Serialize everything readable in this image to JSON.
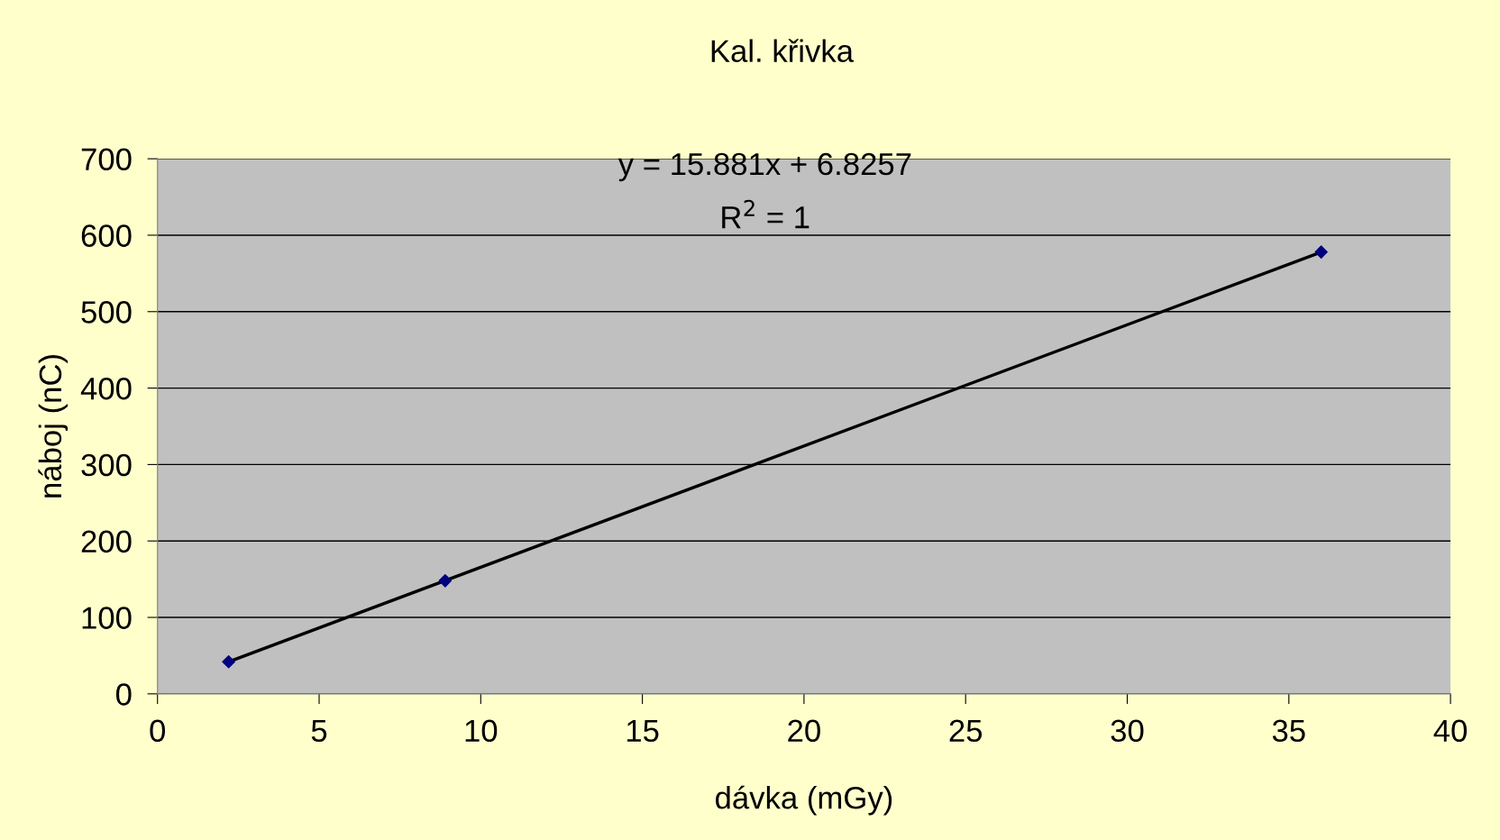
{
  "chart_data": {
    "type": "scatter",
    "title": "Kal. křivka",
    "xlabel": "dávka (mGy)",
    "ylabel": "náboj (nC)",
    "series": [
      {
        "color": "#000080",
        "x": [
          2.2,
          8.9,
          36
        ],
        "values": [
          42,
          148,
          578
        ],
        "marker": "diamond"
      },
      {
        "type": "line",
        "color": "#000000",
        "x": [
          2.2,
          36
        ],
        "values": [
          42,
          578
        ],
        "marker": "none",
        "line_style": "solid"
      }
    ],
    "annotations": [
      "y = 15.881x + 6.8257",
      "R$^{2}$ = 1"
    ],
    "xlim": [
      0,
      40
    ],
    "xticks": [
      0,
      5,
      10,
      15,
      20,
      25,
      30,
      35,
      40
    ],
    "ylim": [
      0,
      700
    ],
    "yticks": [
      0,
      100,
      200,
      300,
      400,
      500,
      600,
      700
    ],
    "grid": "y",
    "legend": false
  }
}
